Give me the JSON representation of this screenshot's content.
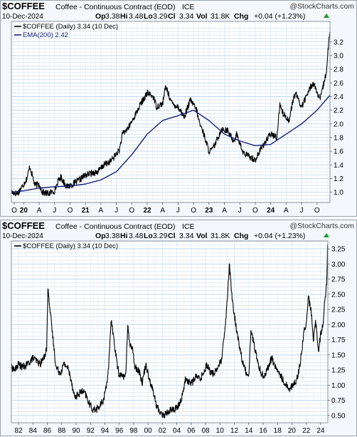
{
  "chart_data": [
    {
      "type": "line",
      "symbol": "$COFFEE",
      "title": "Coffee - Continuous Contract (EOD)",
      "exchange": "ICE",
      "date": "10-Dec-2024",
      "watermark": "@StockCharts.com",
      "quote": {
        "op": "3.38",
        "hi": "3.48",
        "lo": "3.29",
        "cl": "3.34",
        "vol": "31.8K",
        "chg": "+0.04 (+1.23%)"
      },
      "quote_labels": {
        "op": "Op",
        "hi": "Hi",
        "lo": "Lo",
        "cl": "Cl",
        "vol": "Vol",
        "chg": "Chg"
      },
      "legend": [
        {
          "label": "$COFFEE (Daily) 3.34 (10 Dec)",
          "color": "#000000"
        },
        {
          "label": "EMA(200) 2.42",
          "color": "#1a1f7a"
        }
      ],
      "ylim": [
        0.85,
        3.5
      ],
      "yticks": [
        "1.0",
        "1.2",
        "1.4",
        "1.6",
        "1.8",
        "2.0",
        "2.2",
        "2.4",
        "2.6",
        "2.8",
        "3.0",
        "3.2"
      ],
      "x_start": 2019.8,
      "x_end": 2024.96,
      "xticks": [
        {
          "t": 2019.75,
          "label": "O",
          "year": false
        },
        {
          "t": 2020.0,
          "label": "20",
          "year": true
        },
        {
          "t": 2020.25,
          "label": "A",
          "year": false
        },
        {
          "t": 2020.5,
          "label": "J",
          "year": false
        },
        {
          "t": 2020.75,
          "label": "O",
          "year": false
        },
        {
          "t": 2021.0,
          "label": "21",
          "year": true
        },
        {
          "t": 2021.25,
          "label": "A",
          "year": false
        },
        {
          "t": 2021.5,
          "label": "J",
          "year": false
        },
        {
          "t": 2021.75,
          "label": "O",
          "year": false
        },
        {
          "t": 2022.0,
          "label": "22",
          "year": true
        },
        {
          "t": 2022.25,
          "label": "A",
          "year": false
        },
        {
          "t": 2022.5,
          "label": "J",
          "year": false
        },
        {
          "t": 2022.75,
          "label": "O",
          "year": false
        },
        {
          "t": 2023.0,
          "label": "23",
          "year": true
        },
        {
          "t": 2023.25,
          "label": "A",
          "year": false
        },
        {
          "t": 2023.5,
          "label": "J",
          "year": false
        },
        {
          "t": 2023.75,
          "label": "O",
          "year": false
        },
        {
          "t": 2024.0,
          "label": "24",
          "year": true
        },
        {
          "t": 2024.25,
          "label": "A",
          "year": false
        },
        {
          "t": 2024.5,
          "label": "J",
          "year": false
        },
        {
          "t": 2024.75,
          "label": "O",
          "year": false
        }
      ],
      "series": [
        {
          "name": "$COFFEE (Daily)",
          "color": "#000000",
          "x": [
            2019.8,
            2019.9,
            2020.0,
            2020.05,
            2020.1,
            2020.18,
            2020.25,
            2020.3,
            2020.4,
            2020.5,
            2020.55,
            2020.6,
            2020.7,
            2020.8,
            2020.9,
            2021.0,
            2021.1,
            2021.2,
            2021.3,
            2021.4,
            2021.45,
            2021.55,
            2021.6,
            2021.7,
            2021.8,
            2021.9,
            2022.0,
            2022.1,
            2022.15,
            2022.25,
            2022.3,
            2022.4,
            2022.5,
            2022.6,
            2022.7,
            2022.8,
            2022.85,
            2022.9,
            2023.0,
            2023.05,
            2023.1,
            2023.2,
            2023.3,
            2023.4,
            2023.45,
            2023.55,
            2023.6,
            2023.7,
            2023.75,
            2023.85,
            2023.9,
            2024.0,
            2024.1,
            2024.15,
            2024.2,
            2024.3,
            2024.35,
            2024.4,
            2024.5,
            2024.6,
            2024.65,
            2024.7,
            2024.75,
            2024.8,
            2024.85,
            2024.9,
            2024.94,
            2024.96
          ],
          "y": [
            1.0,
            0.98,
            1.12,
            1.2,
            1.38,
            1.1,
            1.12,
            1.0,
            0.98,
            1.02,
            1.15,
            1.22,
            1.08,
            1.12,
            1.18,
            1.25,
            1.28,
            1.3,
            1.4,
            1.45,
            1.5,
            1.62,
            1.85,
            1.95,
            2.12,
            2.3,
            2.45,
            2.4,
            2.25,
            2.3,
            2.55,
            2.3,
            2.25,
            2.1,
            2.35,
            2.2,
            2.0,
            1.9,
            1.6,
            1.62,
            1.7,
            1.92,
            1.9,
            1.75,
            1.85,
            1.58,
            1.55,
            1.5,
            1.47,
            1.65,
            1.72,
            1.85,
            1.8,
            2.3,
            2.15,
            2.05,
            2.3,
            2.45,
            2.25,
            2.45,
            2.55,
            2.6,
            2.45,
            2.35,
            2.55,
            2.75,
            3.2,
            3.34
          ]
        },
        {
          "name": "EMA(200)",
          "color": "#1a1f7a",
          "x": [
            2019.8,
            2020.0,
            2020.25,
            2020.5,
            2020.75,
            2021.0,
            2021.25,
            2021.5,
            2021.75,
            2022.0,
            2022.25,
            2022.5,
            2022.75,
            2023.0,
            2023.25,
            2023.5,
            2023.75,
            2024.0,
            2024.25,
            2024.5,
            2024.75,
            2024.96
          ],
          "y": [
            1.0,
            1.02,
            1.06,
            1.08,
            1.09,
            1.12,
            1.18,
            1.3,
            1.55,
            1.85,
            2.05,
            2.12,
            2.2,
            2.05,
            1.85,
            1.75,
            1.68,
            1.7,
            1.85,
            2.0,
            2.2,
            2.42
          ]
        }
      ]
    },
    {
      "type": "line",
      "symbol": "$COFFEE",
      "title": "Coffee - Continuous Contract (EOD)",
      "exchange": "ICE",
      "date": "10-Dec-2024",
      "watermark": "@StockCharts.com",
      "quote": {
        "op": "3.38",
        "hi": "3.48",
        "lo": "3.29",
        "cl": "3.34",
        "vol": "31.8K",
        "chg": "+0.04 (+1.23%)"
      },
      "quote_labels": {
        "op": "Op",
        "hi": "Hi",
        "lo": "Lo",
        "cl": "Cl",
        "vol": "Vol",
        "chg": "Chg"
      },
      "legend": [
        {
          "label": "$COFFEE (Daily) 3.34 (10 Dec)",
          "color": "#000000"
        }
      ],
      "ylim": [
        0.38,
        3.38
      ],
      "yticks": [
        "0.50",
        "0.75",
        "1.00",
        "1.25",
        "1.50",
        "1.75",
        "2.00",
        "2.25",
        "2.50",
        "2.75",
        "3.00",
        "3.25"
      ],
      "x_start": 1981.0,
      "x_end": 2025.0,
      "xticks": [
        {
          "t": 1982,
          "label": "82",
          "year": false
        },
        {
          "t": 1984,
          "label": "84",
          "year": false
        },
        {
          "t": 1986,
          "label": "86",
          "year": false
        },
        {
          "t": 1988,
          "label": "88",
          "year": false
        },
        {
          "t": 1990,
          "label": "90",
          "year": false
        },
        {
          "t": 1992,
          "label": "92",
          "year": false
        },
        {
          "t": 1994,
          "label": "94",
          "year": false
        },
        {
          "t": 1996,
          "label": "96",
          "year": false
        },
        {
          "t": 1998,
          "label": "98",
          "year": false
        },
        {
          "t": 2000,
          "label": "00",
          "year": false
        },
        {
          "t": 2002,
          "label": "02",
          "year": false
        },
        {
          "t": 2004,
          "label": "04",
          "year": false
        },
        {
          "t": 2006,
          "label": "06",
          "year": false
        },
        {
          "t": 2008,
          "label": "08",
          "year": false
        },
        {
          "t": 2010,
          "label": "10",
          "year": false
        },
        {
          "t": 2012,
          "label": "12",
          "year": false
        },
        {
          "t": 2014,
          "label": "14",
          "year": false
        },
        {
          "t": 2016,
          "label": "16",
          "year": false
        },
        {
          "t": 2018,
          "label": "18",
          "year": false
        },
        {
          "t": 2020,
          "label": "20",
          "year": false
        },
        {
          "t": 2022,
          "label": "22",
          "year": false
        },
        {
          "t": 2024,
          "label": "24",
          "year": false
        }
      ],
      "series": [
        {
          "name": "$COFFEE (Daily)",
          "color": "#000000",
          "x": [
            1981.0,
            1981.5,
            1982.0,
            1982.5,
            1983.0,
            1983.5,
            1984.0,
            1984.5,
            1985.0,
            1985.5,
            1985.9,
            1986.1,
            1986.4,
            1986.8,
            1987.2,
            1987.8,
            1988.3,
            1988.8,
            1989.3,
            1989.8,
            1990.3,
            1990.8,
            1991.3,
            1991.8,
            1992.3,
            1992.8,
            1993.3,
            1993.8,
            1994.2,
            1994.5,
            1994.9,
            1995.4,
            1995.9,
            1996.4,
            1996.9,
            1997.2,
            1997.4,
            1997.8,
            1998.2,
            1998.7,
            1999.2,
            1999.7,
            2000.2,
            2000.7,
            2001.2,
            2001.7,
            2002.2,
            2002.7,
            2003.2,
            2003.7,
            2004.2,
            2004.7,
            2005.2,
            2005.7,
            2006.2,
            2006.7,
            2007.2,
            2007.7,
            2008.2,
            2008.7,
            2009.2,
            2009.7,
            2010.2,
            2010.7,
            2011.1,
            2011.3,
            2011.7,
            2012.2,
            2012.7,
            2013.2,
            2013.7,
            2014.0,
            2014.3,
            2014.7,
            2015.2,
            2015.7,
            2016.2,
            2016.7,
            2017.2,
            2017.7,
            2018.2,
            2018.7,
            2019.2,
            2019.7,
            2020.2,
            2020.7,
            2021.2,
            2021.7,
            2022.0,
            2022.3,
            2022.7,
            2023.0,
            2023.3,
            2023.7,
            2024.0,
            2024.3,
            2024.5,
            2024.7,
            2024.9,
            2024.96
          ],
          "y": [
            1.3,
            1.25,
            1.35,
            1.3,
            1.32,
            1.38,
            1.45,
            1.4,
            1.35,
            1.45,
            1.6,
            2.65,
            2.2,
            1.75,
            1.3,
            1.2,
            1.35,
            1.3,
            1.1,
            0.8,
            0.85,
            0.9,
            0.85,
            0.7,
            0.6,
            0.6,
            0.65,
            0.75,
            1.0,
            1.25,
            2.1,
            1.6,
            1.2,
            1.15,
            1.15,
            2.05,
            1.7,
            1.6,
            1.3,
            1.25,
            1.05,
            1.35,
            1.1,
            0.9,
            0.65,
            0.55,
            0.5,
            0.55,
            0.6,
            0.6,
            0.65,
            0.8,
            1.1,
            1.05,
            1.05,
            1.15,
            1.1,
            1.2,
            1.35,
            1.2,
            1.2,
            1.3,
            1.4,
            1.9,
            2.55,
            3.0,
            2.4,
            2.0,
            1.65,
            1.35,
            1.2,
            1.15,
            1.9,
            1.7,
            1.4,
            1.2,
            1.15,
            1.3,
            1.45,
            1.3,
            1.2,
            1.1,
            1.0,
            0.95,
            1.0,
            1.1,
            1.4,
            1.9,
            2.0,
            2.45,
            2.2,
            1.75,
            2.05,
            1.55,
            1.85,
            2.0,
            2.3,
            2.5,
            2.85,
            3.34
          ]
        }
      ]
    }
  ]
}
